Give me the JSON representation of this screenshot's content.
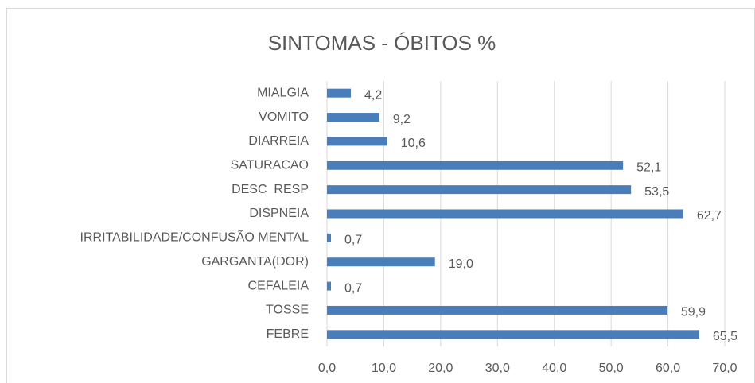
{
  "chart_data": {
    "type": "barh",
    "title": "SINTOMAS - ÓBITOS %",
    "categories": [
      "MIALGIA",
      "VOMITO",
      "DIARREIA",
      "SATURACAO",
      "DESC_RESP",
      "DISPNEIA",
      "IRRITABILIDADE/CONFUSÃO MENTAL",
      "GARGANTA(DOR)",
      "CEFALEIA",
      "TOSSE",
      "FEBRE"
    ],
    "values": [
      4.2,
      9.2,
      10.6,
      52.1,
      53.5,
      62.7,
      0.7,
      19.0,
      0.7,
      59.9,
      65.5
    ],
    "value_labels": [
      "4,2",
      "9,2",
      "10,6",
      "52,1",
      "53,5",
      "62,7",
      "0,7",
      "19,0",
      "0,7",
      "59,9",
      "65,5"
    ],
    "color": "#4a7ebb",
    "xlim": [
      0,
      70
    ],
    "xticks": [
      {
        "value": 0,
        "label": "0,0"
      },
      {
        "value": 10,
        "label": "10,0"
      },
      {
        "value": 20,
        "label": "20,0"
      },
      {
        "value": 30,
        "label": "30,0"
      },
      {
        "value": 40,
        "label": "40,0"
      },
      {
        "value": 50,
        "label": "50,0"
      },
      {
        "value": 60,
        "label": "60,0"
      },
      {
        "value": 70,
        "label": "70,0"
      }
    ],
    "grid": true
  }
}
